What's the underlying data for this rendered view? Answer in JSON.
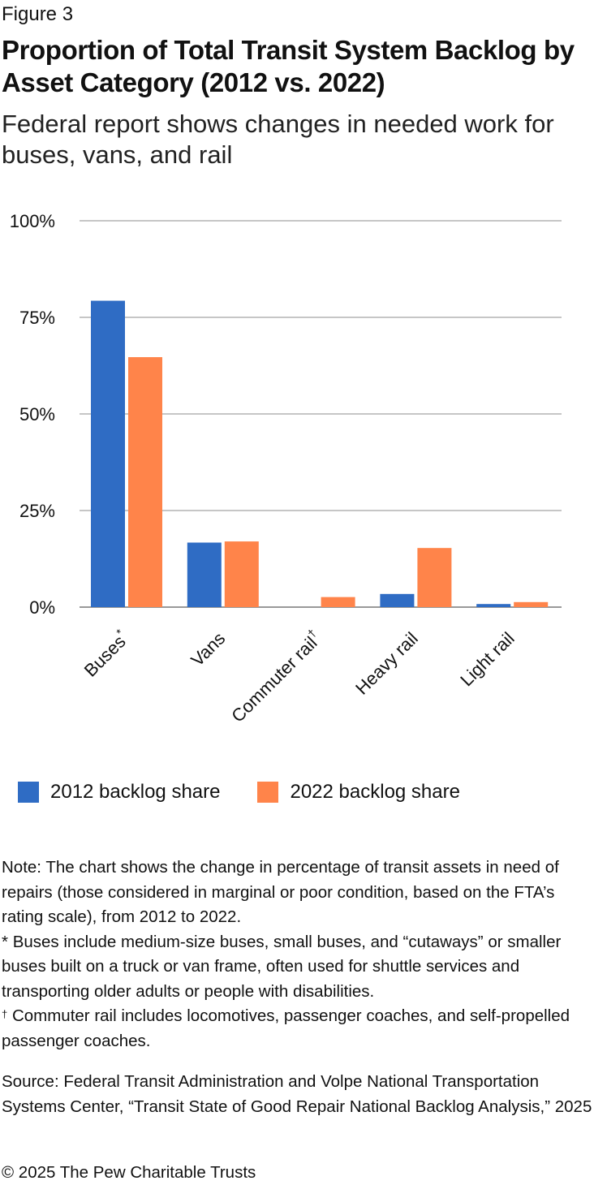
{
  "figure_label": "Figure 3",
  "title": "Proportion of Total Transit System Backlog by Asset Category (2012 vs. 2022)",
  "subtitle": "Federal report shows changes in needed work for buses, vans, and rail",
  "colors": {
    "series_2012": "#2f6cc4",
    "series_2022": "#ff844a",
    "grid": "#b3b3b3",
    "axis": "#999999"
  },
  "chart_data": {
    "type": "bar",
    "categories": [
      {
        "name": "Buses",
        "mark": "*"
      },
      {
        "name": "Vans",
        "mark": ""
      },
      {
        "name": "Commuter rail",
        "mark": "†"
      },
      {
        "name": "Heavy rail",
        "mark": ""
      },
      {
        "name": "Light rail",
        "mark": ""
      }
    ],
    "series": [
      {
        "name": "2012 backlog share",
        "color": "#2f6cc4",
        "values": [
          79.3,
          16.7,
          0,
          3.4,
          0.8
        ]
      },
      {
        "name": "2022 backlog share",
        "color": "#ff844a",
        "values": [
          64.7,
          17.0,
          2.6,
          15.3,
          1.3
        ]
      }
    ],
    "ylim": [
      0,
      100
    ],
    "yticks": [
      0,
      25,
      50,
      75,
      100
    ],
    "ytick_format": "%",
    "grid": true,
    "legend_position": "bottom"
  },
  "legend": [
    {
      "label": "2012 backlog share"
    },
    {
      "label": "2022 backlog share"
    }
  ],
  "notes": {
    "main": "Note: The chart shows the change in percentage of transit assets in need of repairs (those considered in marginal or poor condition, based on the FTA’s rating scale), from 2012 to 2022.",
    "buses_mark": "*",
    "buses": "Buses include medium-size buses, small buses, and “cutaways” or smaller buses built on a truck or van frame, often used for shuttle services and transporting older adults or people with disabilities.",
    "commuter_mark": "†",
    "commuter": "Commuter rail includes locomotives, passenger coaches, and self-propelled passenger coaches."
  },
  "source": "Source: Federal Transit Administration and Volpe National Transportation Systems Center, “Transit State of Good Repair National Backlog Analysis,” 2025",
  "copyright": "© 2025 The Pew Charitable Trusts"
}
